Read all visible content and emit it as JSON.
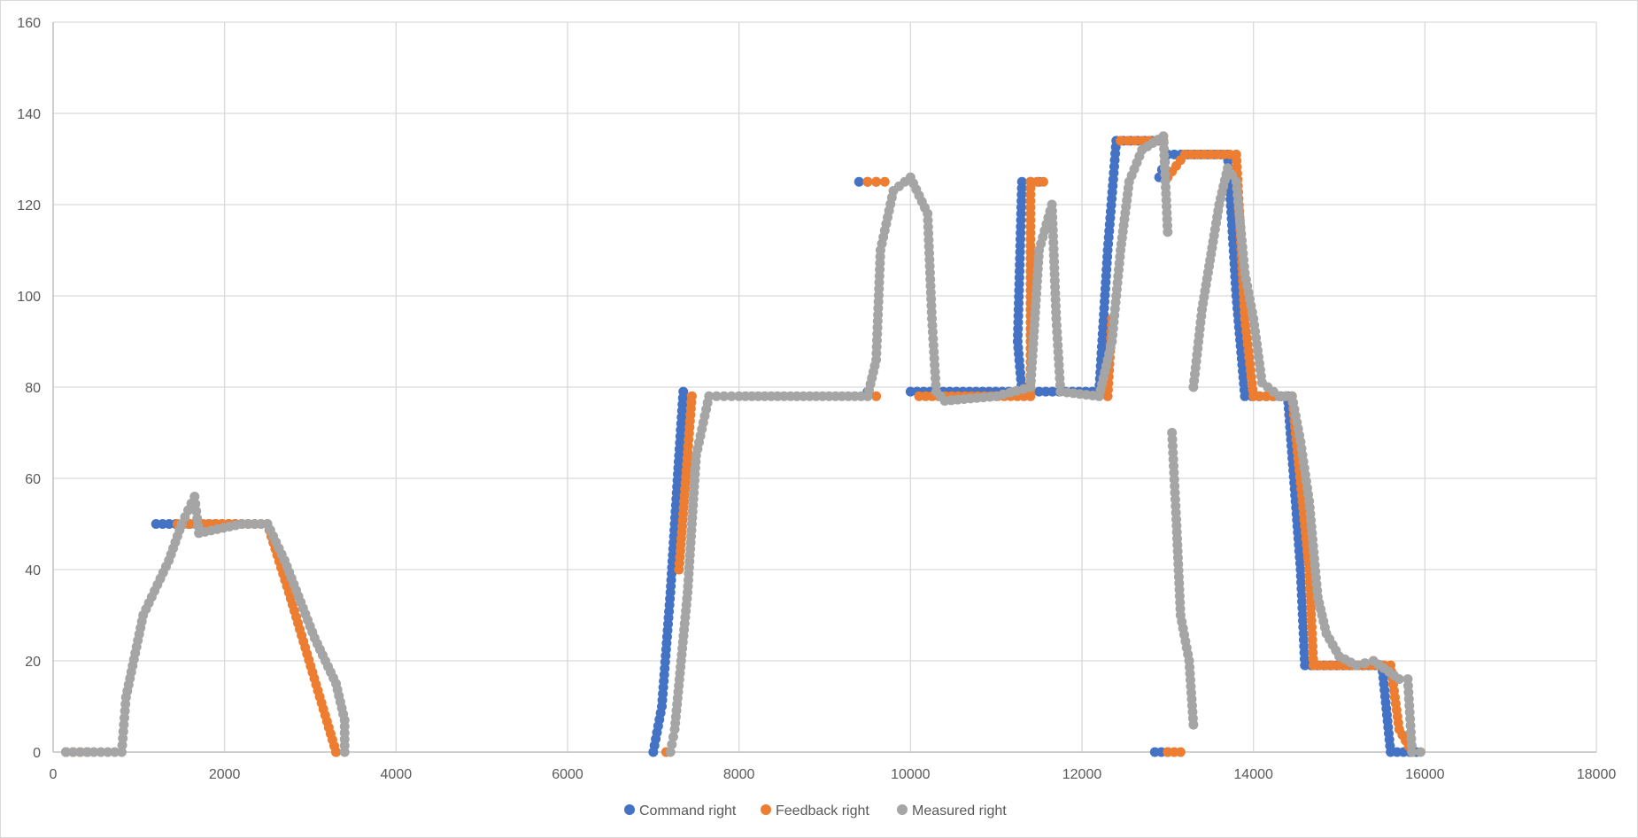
{
  "chart_data": {
    "type": "scatter",
    "title": "",
    "xlabel": "",
    "ylabel": "",
    "xlim": [
      0,
      18000
    ],
    "ylim": [
      0,
      160
    ],
    "x_ticks": [
      "0",
      "2000",
      "4000",
      "6000",
      "8000",
      "10000",
      "12000",
      "14000",
      "16000",
      "18000"
    ],
    "y_ticks": [
      "0",
      "20",
      "40",
      "60",
      "80",
      "100",
      "120",
      "140",
      "160"
    ],
    "grid": true,
    "legend_position": "bottom",
    "colors": {
      "command": "#4472c4",
      "feedback": "#ed7d31",
      "measured": "#a5a5a5",
      "grid": "#d9d9d9",
      "axis": "#bfbfbf",
      "text": "#595959"
    },
    "series": [
      {
        "name": "Command right",
        "color": "#4472c4",
        "points": [
          [
            150,
            0
          ],
          [
            1200,
            50
          ],
          [
            2200,
            50
          ],
          [
            3300,
            0
          ],
          [
            7000,
            0
          ],
          [
            7100,
            10
          ],
          [
            7200,
            35
          ],
          [
            7300,
            65
          ],
          [
            7350,
            79
          ],
          [
            9500,
            79
          ],
          [
            9400,
            125
          ],
          [
            9600,
            125
          ],
          [
            10000,
            79
          ],
          [
            11300,
            79
          ],
          [
            11250,
            90
          ],
          [
            11300,
            125
          ],
          [
            11500,
            125
          ],
          [
            11500,
            79
          ],
          [
            12200,
            79
          ],
          [
            12300,
            110
          ],
          [
            12400,
            134
          ],
          [
            12900,
            134
          ],
          [
            12850,
            0
          ],
          [
            13000,
            0
          ],
          [
            12900,
            126
          ],
          [
            13000,
            131
          ],
          [
            13700,
            131
          ],
          [
            13800,
            100
          ],
          [
            13900,
            78
          ],
          [
            14400,
            78
          ],
          [
            14550,
            40
          ],
          [
            14600,
            19
          ],
          [
            15500,
            19
          ],
          [
            15600,
            0
          ],
          [
            15900,
            0
          ]
        ]
      },
      {
        "name": "Feedback right",
        "color": "#ed7d31",
        "points": [
          [
            150,
            0
          ],
          [
            400,
            0
          ],
          [
            1450,
            50
          ],
          [
            2500,
            50
          ],
          [
            2750,
            35
          ],
          [
            3300,
            0
          ],
          [
            7150,
            0
          ],
          [
            7300,
            40
          ],
          [
            7450,
            78
          ],
          [
            9600,
            78
          ],
          [
            9500,
            125
          ],
          [
            9700,
            125
          ],
          [
            10100,
            78
          ],
          [
            11400,
            78
          ],
          [
            11400,
            90
          ],
          [
            11400,
            125
          ],
          [
            11550,
            125
          ],
          [
            12300,
            78
          ],
          [
            12350,
            95
          ],
          [
            12450,
            134
          ],
          [
            12950,
            134
          ],
          [
            13000,
            0
          ],
          [
            13150,
            0
          ],
          [
            13000,
            126
          ],
          [
            13200,
            131
          ],
          [
            13800,
            131
          ],
          [
            13900,
            95
          ],
          [
            14000,
            78
          ],
          [
            14450,
            78
          ],
          [
            14650,
            40
          ],
          [
            14700,
            19
          ],
          [
            15600,
            19
          ],
          [
            15700,
            5
          ],
          [
            15850,
            0
          ]
        ]
      },
      {
        "name": "Measured right",
        "color": "#a5a5a5",
        "points": [
          [
            150,
            0
          ],
          [
            800,
            0
          ],
          [
            850,
            12
          ],
          [
            1050,
            30
          ],
          [
            1350,
            42
          ],
          [
            1500,
            50
          ],
          [
            1650,
            56
          ],
          [
            1700,
            48
          ],
          [
            2200,
            50
          ],
          [
            2500,
            50
          ],
          [
            2700,
            42
          ],
          [
            3050,
            25
          ],
          [
            3300,
            15
          ],
          [
            3400,
            7
          ],
          [
            3400,
            0
          ],
          [
            7200,
            0
          ],
          [
            7250,
            5
          ],
          [
            7400,
            35
          ],
          [
            7500,
            65
          ],
          [
            7650,
            78
          ],
          [
            8000,
            78
          ],
          [
            9500,
            78
          ],
          [
            9600,
            86
          ],
          [
            9650,
            110
          ],
          [
            9800,
            123
          ],
          [
            10000,
            126
          ],
          [
            10200,
            118
          ],
          [
            10250,
            95
          ],
          [
            10300,
            79
          ],
          [
            10400,
            77
          ],
          [
            11000,
            78
          ],
          [
            11400,
            80
          ],
          [
            11500,
            110
          ],
          [
            11650,
            120
          ],
          [
            11700,
            95
          ],
          [
            11750,
            79
          ],
          [
            12200,
            78
          ],
          [
            12350,
            90
          ],
          [
            12450,
            110
          ],
          [
            12550,
            125
          ],
          [
            12700,
            132
          ],
          [
            12950,
            135
          ],
          [
            13000,
            114
          ],
          [
            13050,
            70
          ],
          [
            13100,
            51
          ],
          [
            13150,
            30
          ],
          [
            13250,
            20
          ],
          [
            13300,
            6
          ],
          [
            13300,
            80
          ],
          [
            13400,
            97
          ],
          [
            13600,
            120
          ],
          [
            13700,
            128
          ],
          [
            13800,
            125
          ],
          [
            13900,
            105
          ],
          [
            14000,
            95
          ],
          [
            14100,
            81
          ],
          [
            14300,
            78
          ],
          [
            14450,
            78
          ],
          [
            14550,
            68
          ],
          [
            14650,
            55
          ],
          [
            14750,
            34
          ],
          [
            14850,
            26
          ],
          [
            15000,
            21
          ],
          [
            15200,
            19
          ],
          [
            15400,
            20
          ],
          [
            15700,
            16
          ],
          [
            15800,
            16
          ],
          [
            15850,
            0
          ],
          [
            15950,
            0
          ]
        ]
      }
    ]
  }
}
